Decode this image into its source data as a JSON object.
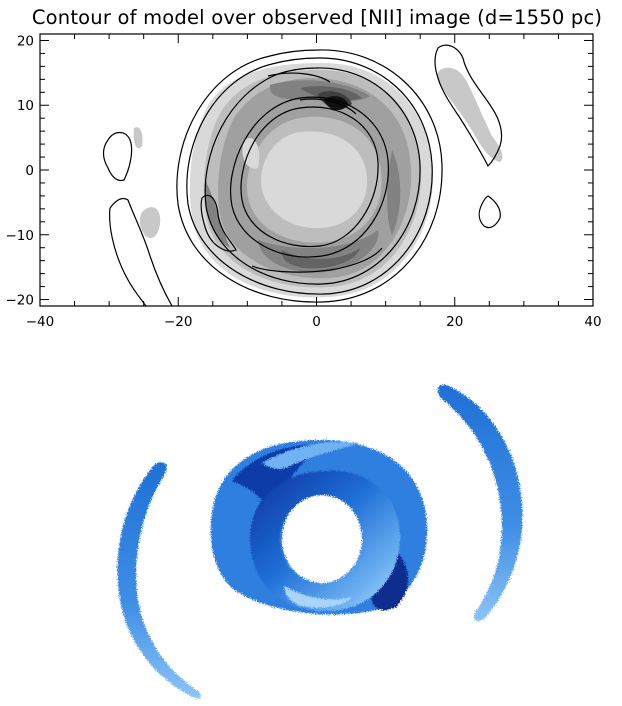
{
  "figure": {
    "title": "Contour of model over observed [NII] image (d=1550 pc)"
  },
  "chart_data": {
    "type": "heatmap",
    "title": "Contour of model over observed [NII] image (d=1550 pc)",
    "xlabel": "",
    "ylabel": "",
    "xlim": [
      -40,
      40
    ],
    "ylim": [
      -21,
      21
    ],
    "x_ticks": [
      "-40",
      "-20",
      "0",
      "20",
      "40"
    ],
    "y_ticks": [
      "20",
      "10",
      "0",
      "-10",
      "-20"
    ],
    "grid": false,
    "colors": {
      "image_levels": [
        "#d9d9d9",
        "#bdbdbd",
        "#a0a0a0",
        "#828282",
        "#636363",
        "#404040",
        "#111111"
      ],
      "contour_line": "#000000"
    }
  },
  "render": {
    "colors": {
      "dark": "#0a2f9e",
      "mid": "#1f6fd6",
      "light": "#6fb2f2",
      "pale": "#b9ddfb"
    }
  }
}
